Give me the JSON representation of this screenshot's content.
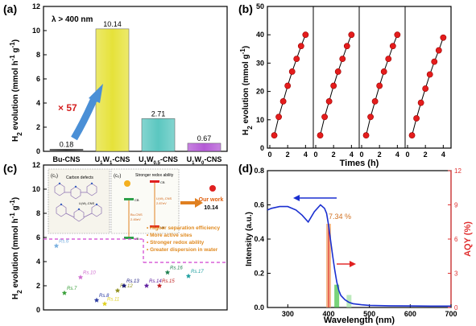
{
  "panel_labels": [
    "(a)",
    "(b)",
    "(c)",
    "(d)"
  ],
  "chart_data": [
    {
      "panel": "(a)",
      "type": "bar",
      "ylabel_html": "H<tspan baseline-shift='sub' font-size='8'>2</tspan> evolution (mmol h<tspan baseline-shift='super' font-size='8'>-1</tspan> g<tspan baseline-shift='super' font-size='8'>-1</tspan>)",
      "annotation": "λ > 400 nm",
      "multiplier_label": "× 57",
      "ylim": [
        0,
        12
      ],
      "yticks": [
        "0",
        "2",
        "4",
        "6",
        "8",
        "10",
        "12"
      ],
      "categories": [
        "Bu-CNS",
        "U1W1-CNS",
        "U1W0.5-CNS",
        "U1W0-CNS"
      ],
      "category_labels_html": [
        "Bu-CNS",
        "U<tspan baseline-shift='sub' font-size='6'>1</tspan>W<tspan baseline-shift='sub' font-size='6'>1</tspan>-CNS",
        "U<tspan baseline-shift='sub' font-size='6'>1</tspan>W<tspan baseline-shift='sub' font-size='6'>0.5</tspan>-CNS",
        "U<tspan baseline-shift='sub' font-size='6'>1</tspan>W<tspan baseline-shift='sub' font-size='6'>0</tspan>-CNS"
      ],
      "values": [
        0.18,
        10.14,
        2.71,
        0.67
      ],
      "value_labels": [
        "0.18",
        "10.14",
        "2.71",
        "0.67"
      ],
      "colors": [
        "#3a3a3a",
        "#e6e23a",
        "#5bc7c0",
        "#b45ad6"
      ]
    },
    {
      "panel": "(b)",
      "type": "scatter",
      "ylabel_html": "H<tspan baseline-shift='sub' font-size='8'>2</tspan> evolution (mmol g<tspan baseline-shift='super' font-size='8'>-1</tspan>)",
      "xlabel": "Times (h)",
      "ylim": [
        0,
        50
      ],
      "yticks": [
        "0",
        "10",
        "20",
        "30",
        "40",
        "50"
      ],
      "xticks": [
        "0",
        "2",
        "4"
      ],
      "cycles": [
        {
          "x": [
            0.5,
            1,
            1.5,
            2,
            2.5,
            3,
            3.5,
            4
          ],
          "y": [
            4.5,
            11,
            16.5,
            22,
            27,
            31.5,
            36,
            40
          ]
        },
        {
          "x": [
            0.5,
            1,
            1.5,
            2,
            2.5,
            3,
            3.5,
            4
          ],
          "y": [
            4.5,
            11,
            16.5,
            22,
            27,
            31.5,
            36,
            40
          ]
        },
        {
          "x": [
            0.5,
            1,
            1.5,
            2,
            2.5,
            3,
            3.5,
            4
          ],
          "y": [
            4.5,
            11,
            16.5,
            22,
            27,
            31.5,
            36,
            40
          ]
        },
        {
          "x": [
            0.5,
            1,
            1.5,
            2,
            2.5,
            3,
            3.5,
            4
          ],
          "y": [
            4.5,
            10.5,
            16,
            21,
            26,
            30.5,
            34.5,
            39
          ]
        }
      ]
    },
    {
      "panel": "(c)",
      "type": "scatter",
      "ylabel_html": "H<tspan baseline-shift='sub' font-size='8'>2</tspan> evolution (mmol h<tspan baseline-shift='super' font-size='8'>-1</tspan> g<tspan baseline-shift='super' font-size='8'>-1</tspan>)",
      "ylim": [
        0,
        12
      ],
      "yticks": [
        "0",
        "2",
        "4",
        "6",
        "8",
        "10",
        "12"
      ],
      "our_work": {
        "label": "Our work",
        "value": "10.14"
      },
      "references": [
        {
          "label": "Rs.6",
          "y": 5.3,
          "color": "#7ab0e0"
        },
        {
          "label": "Rs.7",
          "y": 1.4,
          "color": "#3aa03a"
        },
        {
          "label": "Rs.8",
          "y": 0.8,
          "color": "#2a3aa0"
        },
        {
          "label": "Rs.10",
          "y": 2.7,
          "color": "#d070d0"
        },
        {
          "label": "Rs.11",
          "y": 0.5,
          "color": "#e0d020"
        },
        {
          "label": "Rs.12",
          "y": 1.6,
          "color": "#909020"
        },
        {
          "label": "Rs.13",
          "y": 2.0,
          "color": "#1a1a80"
        },
        {
          "label": "Rs.14",
          "y": 2.0,
          "color": "#6020a0"
        },
        {
          "label": "Rs.15",
          "y": 2.0,
          "color": "#c02020"
        },
        {
          "label": "Rs.16",
          "y": 3.1,
          "color": "#208050"
        },
        {
          "label": "Rs.17",
          "y": 2.8,
          "color": "#20a0a0"
        }
      ],
      "inset": {
        "c1": "(c₁)",
        "c2": "(c₂)",
        "carbon_defects": "Carbon defects",
        "u1w1_label": "U₁W₁-CNS",
        "stronger_redox": "Stronger redox ability",
        "cb": "CB",
        "vb": "VB",
        "bu_cns": "Bu-CNS",
        "bu_gap": "2.45eV",
        "u1w1_cns": "U₁W₁-CNS",
        "u1w1_gap": "2.87eV",
        "bullets": [
          "Higher separation efficiency",
          "More active sites",
          "Stronger redox ability",
          "Greater dispersion in water"
        ]
      }
    },
    {
      "panel": "(d)",
      "type": "line",
      "ylabel": "Intensity (a.u.)",
      "ylabel_right": "AQY (%)",
      "xlabel": "Wavelength (nm)",
      "xlim": [
        250,
        700
      ],
      "ylim": [
        0,
        0.8
      ],
      "ylim_right": [
        0,
        12
      ],
      "xticks": [
        "300",
        "400",
        "500",
        "600",
        "700"
      ],
      "yticks": [
        "0.0",
        "0.2",
        "0.4",
        "0.6",
        "0.8"
      ],
      "yticks_right": [
        "0",
        "3",
        "6",
        "9",
        "12"
      ],
      "absorbance": {
        "x": [
          250,
          260,
          280,
          300,
          320,
          335,
          350,
          365,
          380,
          390,
          395,
          400,
          405,
          410,
          415,
          420,
          425,
          430,
          440,
          450,
          460,
          480,
          500,
          550,
          600,
          650,
          700
        ],
        "y": [
          0.57,
          0.58,
          0.59,
          0.59,
          0.57,
          0.54,
          0.5,
          0.56,
          0.6,
          0.58,
          0.55,
          0.48,
          0.39,
          0.3,
          0.22,
          0.15,
          0.1,
          0.07,
          0.045,
          0.03,
          0.022,
          0.016,
          0.012,
          0.01,
          0.009,
          0.008,
          0.008
        ]
      },
      "aqy": {
        "x": [
          400,
          420,
          450
        ],
        "y": [
          7.34,
          2.0,
          1.1
        ],
        "label": "7.34 %"
      }
    }
  ]
}
